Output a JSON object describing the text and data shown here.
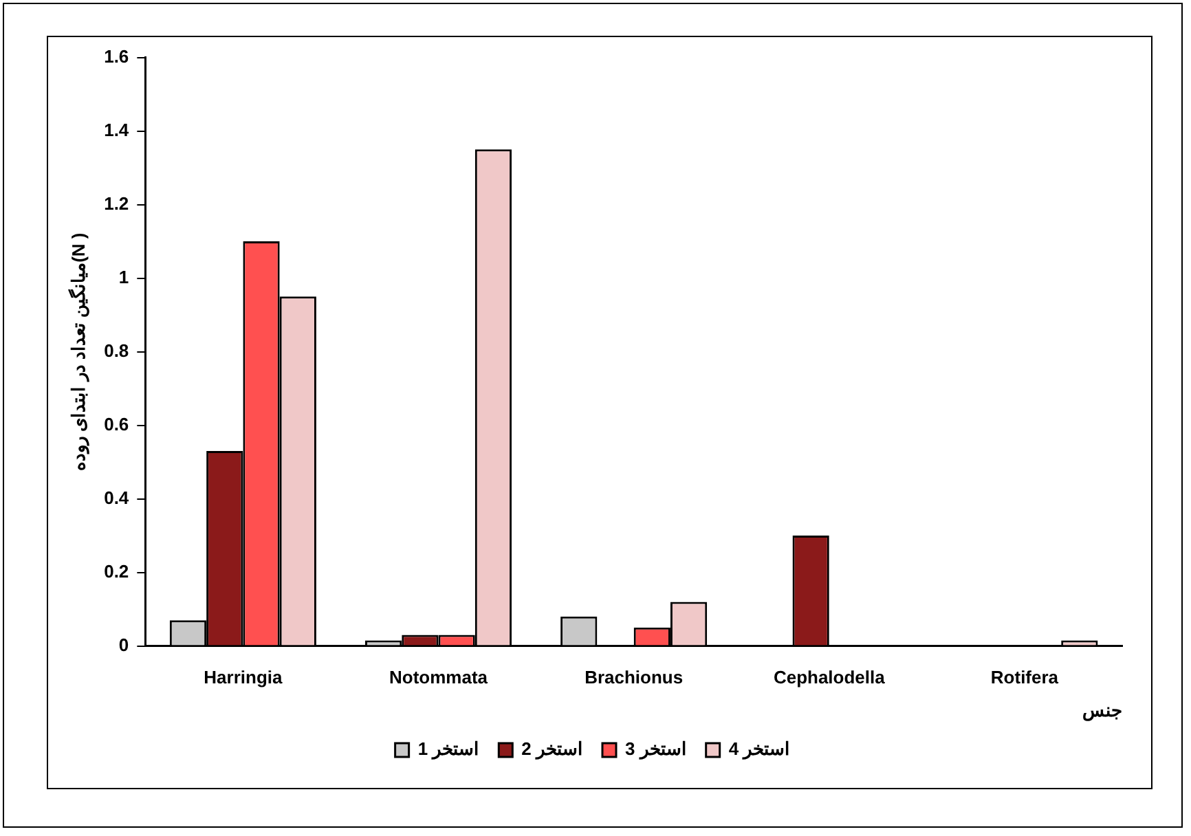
{
  "chart_data": {
    "type": "bar",
    "xlabel": "جنس",
    "ylabel": "میانگین تعداد در ابتدای روده(N )",
    "categories": [
      "Harringia",
      "Notommata",
      "Brachionus",
      "Cephalodella",
      "Rotifera"
    ],
    "series": [
      {
        "name": "استخر 1",
        "color": "#c8c8c8",
        "values": [
          0.07,
          0.015,
          0.08,
          0,
          0
        ]
      },
      {
        "name": "استخر 2",
        "color": "#8b1a1a",
        "values": [
          0.53,
          0.03,
          0,
          0.3,
          0
        ]
      },
      {
        "name": "استخر 3",
        "color": "#ff5050",
        "values": [
          1.1,
          0.03,
          0.05,
          0,
          0
        ]
      },
      {
        "name": "استخر 4",
        "color": "#f0c8c8",
        "values": [
          0.95,
          1.35,
          0.12,
          0,
          0.015
        ]
      }
    ],
    "ylim": [
      0,
      1.6
    ],
    "yticks": [
      0,
      0.2,
      0.4,
      0.6,
      0.8,
      1,
      1.2,
      1.4,
      1.6
    ],
    "grid": false,
    "legend": "bottom"
  }
}
